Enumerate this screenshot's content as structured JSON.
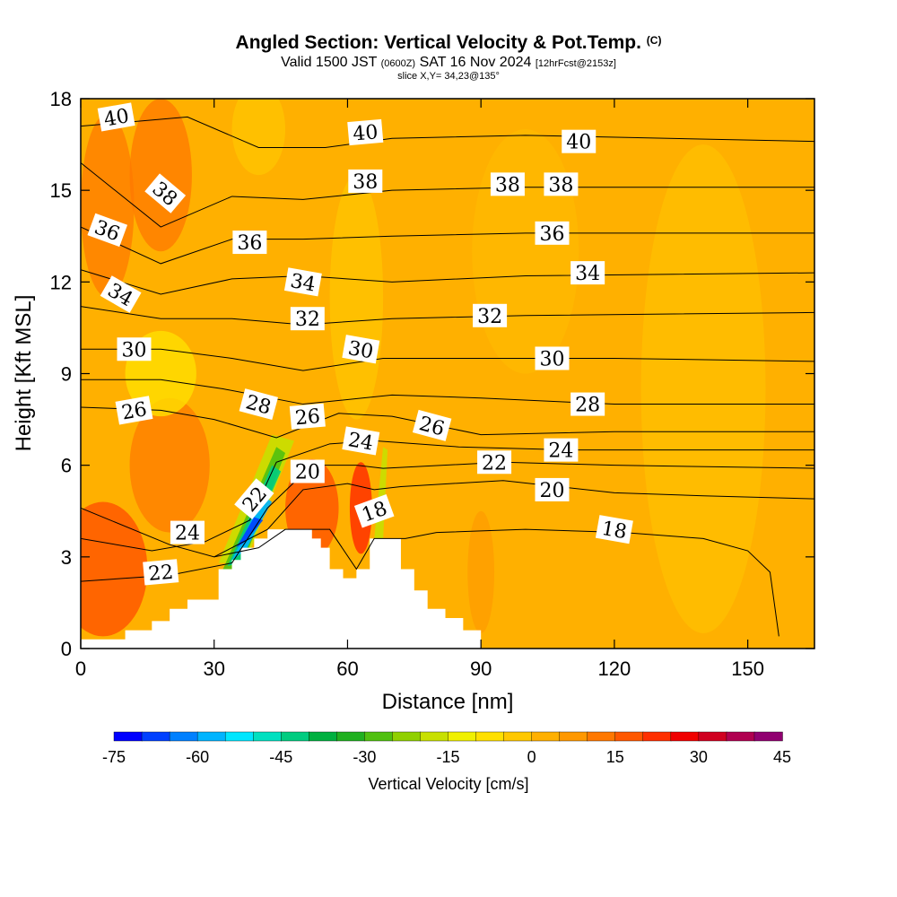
{
  "header": {
    "title": "Angled Section: Vertical Velocity & Pot.Temp.",
    "copyright": "(C)",
    "valid_prefix": "Valid 1500 JST",
    "valid_utc": "(0600Z)",
    "valid_date": "SAT 16 Nov 2024",
    "forecast": "[12hrFcst@2153z]",
    "slice": "slice X,Y= 34,23@135°"
  },
  "chart_data": {
    "type": "heatmap",
    "xlabel": "Distance [nm]",
    "ylabel": "Height [Kft MSL]",
    "xlim": [
      0,
      165
    ],
    "ylim": [
      0,
      18
    ],
    "x_ticks": [
      0,
      30,
      60,
      90,
      120,
      150
    ],
    "y_ticks": [
      0,
      3,
      6,
      9,
      12,
      15,
      18
    ],
    "colorbar": {
      "title": "Vertical Velocity [cm/s]",
      "min": -75,
      "max": 45,
      "step": 5,
      "tick_labels": [
        "-75",
        "-60",
        "-45",
        "-30",
        "-15",
        "0",
        "15",
        "30",
        "45"
      ],
      "colors": [
        "#0000ff",
        "#0040ff",
        "#0080ff",
        "#00b4ff",
        "#00e6ff",
        "#00e0c0",
        "#00cc80",
        "#00b040",
        "#20b020",
        "#50c010",
        "#90d000",
        "#c8e000",
        "#f0f000",
        "#ffe000",
        "#ffc800",
        "#ffb000",
        "#ff9800",
        "#ff7800",
        "#ff5800",
        "#ff3000",
        "#f00000",
        "#d00020",
        "#b00050",
        "#900070"
      ]
    },
    "terrain": [
      [
        0,
        0.3
      ],
      [
        10,
        0.3
      ],
      [
        10,
        0.6
      ],
      [
        16,
        0.6
      ],
      [
        16,
        0.9
      ],
      [
        20,
        0.9
      ],
      [
        20,
        1.3
      ],
      [
        24,
        1.3
      ],
      [
        24,
        1.6
      ],
      [
        31,
        1.6
      ],
      [
        31,
        2.6
      ],
      [
        34,
        2.6
      ],
      [
        34,
        2.9
      ],
      [
        36,
        2.9
      ],
      [
        36,
        3.3
      ],
      [
        39,
        3.3
      ],
      [
        39,
        3.6
      ],
      [
        42,
        3.6
      ],
      [
        42,
        3.9
      ],
      [
        52,
        3.9
      ],
      [
        52,
        3.6
      ],
      [
        54,
        3.6
      ],
      [
        54,
        3.3
      ],
      [
        56,
        3.3
      ],
      [
        56,
        2.6
      ],
      [
        59,
        2.6
      ],
      [
        59,
        2.3
      ],
      [
        62,
        2.3
      ],
      [
        62,
        2.6
      ],
      [
        65,
        2.6
      ],
      [
        65,
        3.6
      ],
      [
        72,
        3.6
      ],
      [
        72,
        2.6
      ],
      [
        75,
        2.6
      ],
      [
        75,
        1.9
      ],
      [
        78,
        1.9
      ],
      [
        78,
        1.3
      ],
      [
        82,
        1.3
      ],
      [
        82,
        1.0
      ],
      [
        86,
        1.0
      ],
      [
        86,
        0.6
      ],
      [
        90,
        0.6
      ],
      [
        90,
        0
      ]
    ],
    "contours": [
      {
        "theta": 18,
        "points": [
          [
            0,
            4.6
          ],
          [
            20,
            3.4
          ],
          [
            30,
            3.0
          ],
          [
            40,
            3.3
          ],
          [
            46,
            3.9
          ],
          [
            56,
            3.9
          ],
          [
            62,
            2.6
          ],
          [
            66,
            3.6
          ],
          [
            73,
            3.6
          ],
          [
            80,
            3.8
          ],
          [
            100,
            3.9
          ],
          [
            122,
            3.8
          ],
          [
            140,
            3.6
          ],
          [
            150,
            3.2
          ],
          [
            155,
            2.5
          ],
          [
            157,
            0.4
          ]
        ]
      },
      {
        "theta": 20,
        "points": [
          [
            30,
            3.0
          ],
          [
            42,
            3.9
          ],
          [
            50,
            5.2
          ],
          [
            60,
            5.4
          ],
          [
            66,
            5.2
          ],
          [
            72,
            5.3
          ],
          [
            95,
            5.5
          ],
          [
            120,
            5.1
          ],
          [
            140,
            5.0
          ],
          [
            165,
            4.9
          ]
        ]
      },
      {
        "theta": 22,
        "points": [
          [
            0,
            2.2
          ],
          [
            20,
            2.4
          ],
          [
            34,
            2.8
          ],
          [
            42,
            4.6
          ],
          [
            52,
            6.0
          ],
          [
            62,
            6.0
          ],
          [
            68,
            5.9
          ],
          [
            95,
            6.1
          ],
          [
            120,
            6.0
          ],
          [
            165,
            5.9
          ]
        ]
      },
      {
        "theta": 24,
        "points": [
          [
            0,
            3.6
          ],
          [
            16,
            3.2
          ],
          [
            28,
            3.5
          ],
          [
            38,
            4.2
          ],
          [
            44,
            6.1
          ],
          [
            56,
            6.7
          ],
          [
            66,
            6.8
          ],
          [
            85,
            6.6
          ],
          [
            110,
            6.5
          ],
          [
            165,
            6.5
          ]
        ]
      },
      {
        "theta": 26,
        "points": [
          [
            0,
            7.9
          ],
          [
            18,
            7.8
          ],
          [
            30,
            7.5
          ],
          [
            44,
            6.9
          ],
          [
            58,
            7.7
          ],
          [
            70,
            7.6
          ],
          [
            90,
            7.0
          ],
          [
            120,
            7.1
          ],
          [
            165,
            7.1
          ]
        ]
      },
      {
        "theta": 28,
        "points": [
          [
            0,
            8.8
          ],
          [
            18,
            8.8
          ],
          [
            32,
            8.5
          ],
          [
            50,
            8.0
          ],
          [
            70,
            8.3
          ],
          [
            90,
            8.2
          ],
          [
            120,
            8.0
          ],
          [
            165,
            8.0
          ]
        ]
      },
      {
        "theta": 30,
        "points": [
          [
            0,
            9.8
          ],
          [
            18,
            9.8
          ],
          [
            34,
            9.5
          ],
          [
            50,
            9.1
          ],
          [
            68,
            9.5
          ],
          [
            90,
            9.5
          ],
          [
            120,
            9.5
          ],
          [
            165,
            9.4
          ]
        ]
      },
      {
        "theta": 32,
        "points": [
          [
            0,
            11.2
          ],
          [
            18,
            10.8
          ],
          [
            34,
            10.8
          ],
          [
            50,
            10.6
          ],
          [
            70,
            10.8
          ],
          [
            100,
            10.9
          ],
          [
            165,
            11.0
          ]
        ]
      },
      {
        "theta": 34,
        "points": [
          [
            0,
            12.4
          ],
          [
            18,
            11.6
          ],
          [
            34,
            12.1
          ],
          [
            50,
            12.2
          ],
          [
            70,
            12.0
          ],
          [
            100,
            12.2
          ],
          [
            165,
            12.3
          ]
        ]
      },
      {
        "theta": 36,
        "points": [
          [
            0,
            13.8
          ],
          [
            18,
            12.6
          ],
          [
            34,
            13.4
          ],
          [
            50,
            13.4
          ],
          [
            70,
            13.5
          ],
          [
            100,
            13.6
          ],
          [
            165,
            13.6
          ]
        ]
      },
      {
        "theta": 38,
        "points": [
          [
            0,
            15.9
          ],
          [
            18,
            13.8
          ],
          [
            34,
            14.8
          ],
          [
            50,
            14.7
          ],
          [
            70,
            15.0
          ],
          [
            100,
            15.1
          ],
          [
            165,
            15.1
          ]
        ]
      },
      {
        "theta": 40,
        "points": [
          [
            0,
            17.1
          ],
          [
            24,
            17.4
          ],
          [
            40,
            16.4
          ],
          [
            55,
            16.4
          ],
          [
            70,
            16.7
          ],
          [
            100,
            16.8
          ],
          [
            165,
            16.6
          ]
        ]
      }
    ],
    "contour_labels": [
      {
        "text": "40",
        "x": 8,
        "y": 17.4,
        "angle": -10
      },
      {
        "text": "40",
        "x": 64,
        "y": 16.9,
        "angle": -5
      },
      {
        "text": "40",
        "x": 112,
        "y": 16.6,
        "angle": 0
      },
      {
        "text": "38",
        "x": 19,
        "y": 14.9,
        "angle": 40
      },
      {
        "text": "38",
        "x": 64,
        "y": 15.3,
        "angle": 0
      },
      {
        "text": "38",
        "x": 96,
        "y": 15.2,
        "angle": 0
      },
      {
        "text": "38",
        "x": 108,
        "y": 15.2,
        "angle": 0
      },
      {
        "text": "36",
        "x": 6,
        "y": 13.7,
        "angle": 20
      },
      {
        "text": "36",
        "x": 38,
        "y": 13.3,
        "angle": 0
      },
      {
        "text": "36",
        "x": 106,
        "y": 13.6,
        "angle": 0
      },
      {
        "text": "34",
        "x": 9,
        "y": 11.6,
        "angle": 30
      },
      {
        "text": "34",
        "x": 50,
        "y": 12.0,
        "angle": 10
      },
      {
        "text": "34",
        "x": 114,
        "y": 12.3,
        "angle": 0
      },
      {
        "text": "32",
        "x": 51,
        "y": 10.8,
        "angle": 0
      },
      {
        "text": "32",
        "x": 92,
        "y": 10.9,
        "angle": 0
      },
      {
        "text": "30",
        "x": 12,
        "y": 9.8,
        "angle": 0
      },
      {
        "text": "30",
        "x": 63,
        "y": 9.8,
        "angle": 10
      },
      {
        "text": "30",
        "x": 106,
        "y": 9.5,
        "angle": 0
      },
      {
        "text": "28",
        "x": 40,
        "y": 8.0,
        "angle": 15
      },
      {
        "text": "28",
        "x": 114,
        "y": 8.0,
        "angle": 0
      },
      {
        "text": "26",
        "x": 12,
        "y": 7.8,
        "angle": -10
      },
      {
        "text": "26",
        "x": 51,
        "y": 7.6,
        "angle": -5
      },
      {
        "text": "26",
        "x": 79,
        "y": 7.3,
        "angle": 15
      },
      {
        "text": "24",
        "x": 63,
        "y": 6.8,
        "angle": 10
      },
      {
        "text": "24",
        "x": 108,
        "y": 6.5,
        "angle": 0
      },
      {
        "text": "24",
        "x": 24,
        "y": 3.8,
        "angle": 0
      },
      {
        "text": "22",
        "x": 93,
        "y": 6.1,
        "angle": 0
      },
      {
        "text": "22",
        "x": 39,
        "y": 4.9,
        "angle": -50
      },
      {
        "text": "22",
        "x": 18,
        "y": 2.5,
        "angle": -5
      },
      {
        "text": "20",
        "x": 51,
        "y": 5.8,
        "angle": 0
      },
      {
        "text": "20",
        "x": 106,
        "y": 5.2,
        "angle": 0
      },
      {
        "text": "18",
        "x": 66,
        "y": 4.5,
        "angle": -20
      },
      {
        "text": "18",
        "x": 120,
        "y": 3.9,
        "angle": 10
      }
    ]
  }
}
